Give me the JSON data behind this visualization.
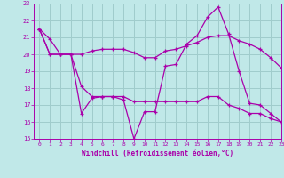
{
  "xlabel": "Windchill (Refroidissement éolien,°C)",
  "xlim": [
    -0.5,
    23
  ],
  "ylim": [
    15,
    23
  ],
  "yticks": [
    15,
    16,
    17,
    18,
    19,
    20,
    21,
    22,
    23
  ],
  "xticks": [
    0,
    1,
    2,
    3,
    4,
    5,
    6,
    7,
    8,
    9,
    10,
    11,
    12,
    13,
    14,
    15,
    16,
    17,
    18,
    19,
    20,
    21,
    22,
    23
  ],
  "background_color": "#c0e8e8",
  "grid_color": "#a0cccc",
  "line_color": "#aa00aa",
  "series": [
    [
      21.5,
      20.0,
      20.0,
      20.0,
      20.0,
      20.2,
      20.3,
      20.3,
      20.3,
      20.1,
      19.8,
      19.8,
      20.2,
      20.3,
      20.5,
      20.7,
      21.0,
      21.1,
      21.1,
      20.8,
      20.6,
      20.3,
      19.8,
      19.2
    ],
    [
      21.5,
      20.9,
      20.0,
      20.0,
      18.1,
      17.5,
      17.5,
      17.5,
      17.3,
      15.0,
      16.6,
      16.6,
      19.3,
      19.4,
      20.6,
      21.1,
      22.2,
      22.8,
      21.2,
      19.0,
      17.1,
      17.0,
      16.5,
      16.0
    ],
    [
      21.5,
      20.0,
      20.0,
      20.0,
      16.5,
      17.4,
      17.5,
      17.5,
      17.5,
      17.2,
      17.2,
      17.2,
      17.2,
      17.2,
      17.2,
      17.2,
      17.5,
      17.5,
      17.0,
      16.8,
      16.5,
      16.5,
      16.2,
      16.0
    ]
  ]
}
